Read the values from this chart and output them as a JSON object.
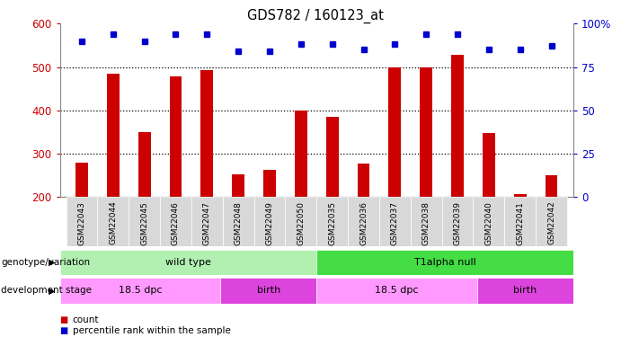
{
  "title": "GDS782 / 160123_at",
  "samples": [
    "GSM22043",
    "GSM22044",
    "GSM22045",
    "GSM22046",
    "GSM22047",
    "GSM22048",
    "GSM22049",
    "GSM22050",
    "GSM22035",
    "GSM22036",
    "GSM22037",
    "GSM22038",
    "GSM22039",
    "GSM22040",
    "GSM22041",
    "GSM22042"
  ],
  "counts": [
    280,
    485,
    350,
    478,
    492,
    253,
    262,
    400,
    385,
    278,
    500,
    500,
    527,
    348,
    207,
    250
  ],
  "percentile_ranks_pct": [
    90,
    94,
    90,
    94,
    94,
    84,
    84,
    88,
    88,
    85,
    88,
    94,
    94,
    85,
    85,
    87
  ],
  "ylim_left": [
    200,
    600
  ],
  "ylim_right": [
    0,
    100
  ],
  "yticks_left": [
    200,
    300,
    400,
    500,
    600
  ],
  "yticks_right": [
    0,
    25,
    50,
    75,
    100
  ],
  "bar_color": "#cc0000",
  "dot_color": "#0000cc",
  "bar_width": 0.4,
  "genotype_groups": [
    {
      "label": "wild type",
      "start": 0,
      "end": 8,
      "color": "#b2f0b2"
    },
    {
      "label": "T1alpha null",
      "start": 8,
      "end": 16,
      "color": "#44dd44"
    }
  ],
  "dev_stage_groups": [
    {
      "label": "18.5 dpc",
      "start": 0,
      "end": 5,
      "color": "#ff99ff"
    },
    {
      "label": "birth",
      "start": 5,
      "end": 8,
      "color": "#dd44dd"
    },
    {
      "label": "18.5 dpc",
      "start": 8,
      "end": 13,
      "color": "#ff99ff"
    },
    {
      "label": "birth",
      "start": 13,
      "end": 16,
      "color": "#dd44dd"
    }
  ],
  "tick_label_color_left": "#cc0000",
  "tick_label_color_right": "#0000cc",
  "legend_items": [
    {
      "label": "count",
      "color": "#cc0000"
    },
    {
      "label": "percentile rank within the sample",
      "color": "#0000cc"
    }
  ]
}
